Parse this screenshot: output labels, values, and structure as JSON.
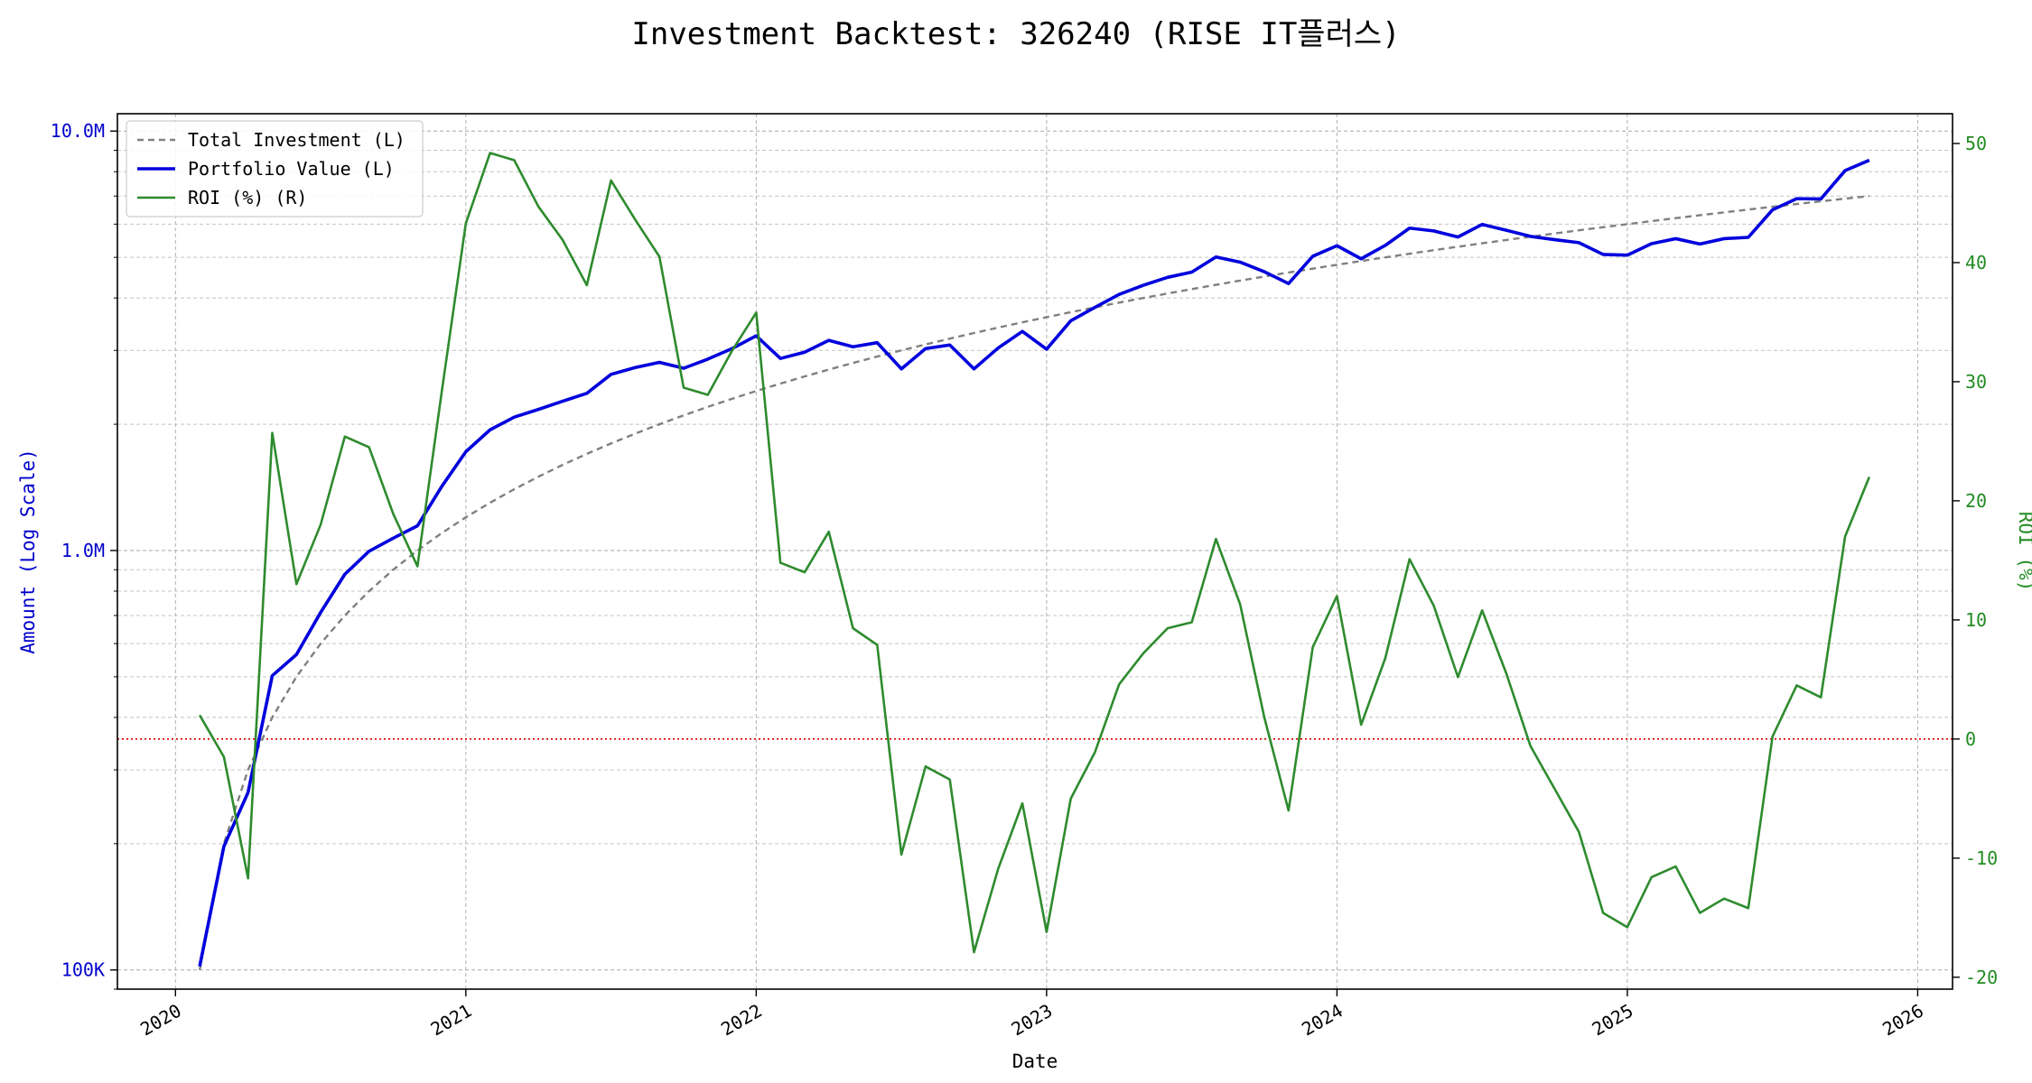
{
  "chart_data": {
    "type": "line",
    "title": "Investment Backtest: 326240 (RISE IT플러스)",
    "xlabel": "Date",
    "ylabel_left": "Amount (Log Scale)",
    "ylabel_right": "ROI (%)",
    "left_scale": "log",
    "left_ylim": [
      90000,
      11000000
    ],
    "right_ylim": [
      -21,
      52.5
    ],
    "x_ticks": [
      "2020",
      "2021",
      "2022",
      "2023",
      "2024",
      "2025",
      "2026"
    ],
    "left_ticks": [
      {
        "value": 100000,
        "label": "100K"
      },
      {
        "value": 1000000,
        "label": "1.0M"
      },
      {
        "value": 10000000,
        "label": "10.0M"
      }
    ],
    "right_ticks": [
      -20,
      -10,
      0,
      10,
      20,
      30,
      40,
      50
    ],
    "grid": true,
    "legend_position": "top-left",
    "zero_line": {
      "axis": "right",
      "value": 0,
      "color": "#dd0000",
      "style": "dotted"
    },
    "colors": {
      "left_axis": "#0000cc",
      "right_axis": "#228b22",
      "total_investment": "#808080",
      "portfolio": "#0000dd",
      "roi": "#2e8b2e"
    },
    "dates": [
      "2020-02",
      "2020-03",
      "2020-04",
      "2020-05",
      "2020-06",
      "2020-07",
      "2020-08",
      "2020-09",
      "2020-10",
      "2020-11",
      "2020-12",
      "2021-01",
      "2021-02",
      "2021-03",
      "2021-04",
      "2021-05",
      "2021-06",
      "2021-07",
      "2021-08",
      "2021-09",
      "2021-10",
      "2021-11",
      "2021-12",
      "2022-01",
      "2022-02",
      "2022-03",
      "2022-04",
      "2022-05",
      "2022-06",
      "2022-07",
      "2022-08",
      "2022-09",
      "2022-10",
      "2022-11",
      "2022-12",
      "2023-01",
      "2023-02",
      "2023-03",
      "2023-04",
      "2023-05",
      "2023-06",
      "2023-07",
      "2023-08",
      "2023-09",
      "2023-10",
      "2023-11",
      "2023-12",
      "2024-01",
      "2024-02",
      "2024-03",
      "2024-04",
      "2024-05",
      "2024-06",
      "2024-07",
      "2024-08",
      "2024-09",
      "2024-10",
      "2024-11",
      "2024-12",
      "2025-01",
      "2025-02",
      "2025-03",
      "2025-04",
      "2025-05",
      "2025-06",
      "2025-07",
      "2025-08",
      "2025-09",
      "2025-10",
      "2025-11"
    ],
    "series": [
      {
        "name": "Total Investment (L)",
        "axis": "left",
        "style": "dashed",
        "values": [
          100000,
          200000,
          300000,
          400000,
          500000,
          600000,
          700000,
          800000,
          900000,
          1000000,
          1100000,
          1200000,
          1300000,
          1400000,
          1500000,
          1600000,
          1700000,
          1800000,
          1900000,
          2000000,
          2100000,
          2200000,
          2300000,
          2400000,
          2500000,
          2600000,
          2700000,
          2800000,
          2900000,
          3000000,
          3100000,
          3200000,
          3300000,
          3400000,
          3500000,
          3600000,
          3700000,
          3800000,
          3900000,
          4000000,
          4100000,
          4200000,
          4300000,
          4400000,
          4500000,
          4600000,
          4700000,
          4800000,
          4900000,
          5000000,
          5100000,
          5200000,
          5300000,
          5400000,
          5500000,
          5600000,
          5700000,
          5800000,
          5900000,
          6000000,
          6100000,
          6200000,
          6300000,
          6400000,
          6500000,
          6600000,
          6700000,
          6800000,
          6900000,
          7000000
        ]
      },
      {
        "name": "Portfolio Value (L)",
        "axis": "left",
        "style": "solid",
        "values": [
          102000,
          197000,
          265000,
          503000,
          565000,
          712000,
          878000,
          996000,
          1070000,
          1145000,
          1420000,
          1720000,
          1940000,
          2080000,
          2170000,
          2270000,
          2370000,
          2630000,
          2730000,
          2810000,
          2720000,
          2860000,
          3030000,
          3250000,
          2870000,
          2970000,
          3170000,
          3060000,
          3130000,
          2710000,
          3030000,
          3090000,
          2710000,
          3040000,
          3330000,
          3020000,
          3530000,
          3800000,
          4080000,
          4290000,
          4480000,
          4610000,
          5010000,
          4870000,
          4620000,
          4330000,
          5030000,
          5330000,
          4960000,
          5340000,
          5870000,
          5780000,
          5590000,
          5990000,
          5800000,
          5610000,
          5510000,
          5420000,
          5080000,
          5060000,
          5390000,
          5540000,
          5380000,
          5540000,
          5580000,
          6490000,
          6900000,
          6890000,
          8050000,
          8520000
        ]
      },
      {
        "name": "ROI (%) (R)",
        "axis": "right",
        "style": "solid",
        "values": [
          2.0,
          -1.5,
          -11.7,
          25.7,
          13.0,
          18.0,
          25.4,
          24.5,
          18.9,
          14.5,
          29.1,
          43.3,
          49.2,
          48.6,
          44.7,
          41.9,
          38.1,
          46.9,
          43.6,
          40.5,
          29.5,
          28.9,
          32.6,
          35.8,
          14.8,
          14.0,
          17.4,
          9.3,
          7.9,
          -9.7,
          -2.3,
          -3.4,
          -17.9,
          -10.9,
          -5.4,
          -16.2,
          -5.0,
          -1.1,
          4.6,
          7.2,
          9.3,
          9.8,
          16.8,
          11.3,
          1.8,
          -6.0,
          7.7,
          12.0,
          1.2,
          6.8,
          15.1,
          11.2,
          5.2,
          10.8,
          5.5,
          -0.6,
          -4.2,
          -7.8,
          -14.6,
          -15.8,
          -11.6,
          -10.7,
          -14.6,
          -13.4,
          -14.2,
          0.2,
          4.5,
          3.5,
          17.0,
          22.0
        ]
      }
    ]
  }
}
